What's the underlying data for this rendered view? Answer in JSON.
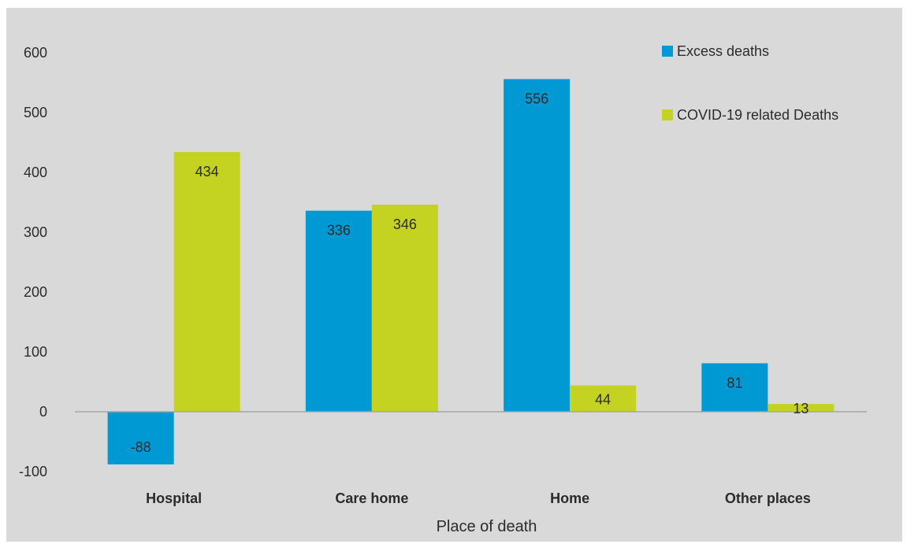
{
  "chart_data": {
    "type": "bar",
    "categories": [
      "Hospital",
      "Care home",
      "Home",
      "Other places"
    ],
    "series": [
      {
        "name": "Excess deaths",
        "values": [
          -88,
          336,
          556,
          81
        ],
        "color": "#0099d3"
      },
      {
        "name": "COVID-19 related Deaths",
        "values": [
          434,
          346,
          44,
          13
        ],
        "color": "#c4d321"
      }
    ],
    "xlabel": "Place of death",
    "ylabel": "",
    "ylim": [
      -100,
      600
    ],
    "yticks": [
      -100,
      0,
      100,
      200,
      300,
      400,
      500,
      600
    ],
    "grid": false,
    "legend_position": "top-right",
    "background": "#d9d9d9"
  }
}
